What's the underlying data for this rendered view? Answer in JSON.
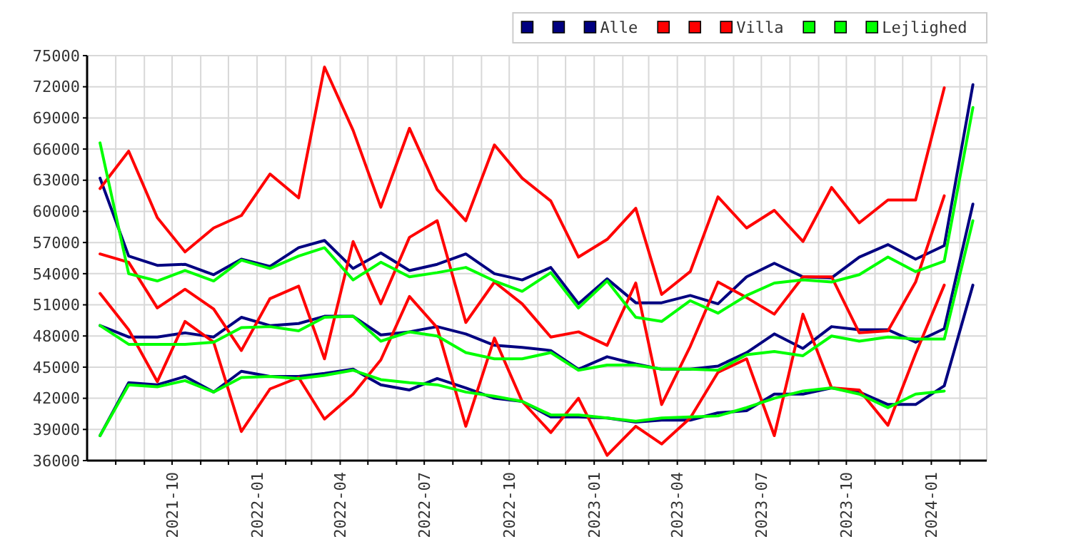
{
  "chart_data": {
    "type": "line",
    "x": [
      "2021-07-15",
      "2021-08-15",
      "2021-09-15",
      "2021-10-15",
      "2021-11-15",
      "2021-12-15",
      "2022-01-15",
      "2022-02-15",
      "2022-03-15",
      "2022-04-15",
      "2022-05-15",
      "2022-06-15",
      "2022-07-15",
      "2022-08-15",
      "2022-09-15",
      "2022-10-15",
      "2022-11-15",
      "2022-12-15",
      "2023-01-15",
      "2023-02-15",
      "2023-03-15",
      "2023-04-15",
      "2023-05-15",
      "2023-06-15",
      "2023-07-15",
      "2023-08-15",
      "2023-09-15",
      "2023-10-15",
      "2023-11-15",
      "2023-12-15",
      "2024-01-15",
      "2024-02-15"
    ],
    "series": [
      {
        "color": "#000080",
        "values": [
          63200,
          55700,
          54800,
          54900,
          53900,
          55400,
          54700,
          56500,
          57200,
          54500,
          56000,
          54300,
          54900,
          55900,
          54000,
          53400,
          54600,
          51100,
          53500,
          51200,
          51200,
          51900,
          51100,
          53700,
          55000,
          53700,
          53600,
          55600,
          56800,
          55400,
          56700,
          72200
        ]
      },
      {
        "color": "#000080",
        "values": [
          49000,
          47900,
          47900,
          48300,
          47900,
          49800,
          49000,
          49200,
          49900,
          49900,
          48100,
          48400,
          48900,
          48200,
          47100,
          46900,
          46600,
          44800,
          46000,
          45300,
          44800,
          44800,
          45100,
          46400,
          48200,
          46800,
          48900,
          48600,
          48600,
          47400,
          48700,
          60700
        ]
      },
      {
        "name": "Alle",
        "color": "#000080",
        "values": [
          38400,
          43500,
          43300,
          44100,
          42600,
          44600,
          44100,
          44100,
          44400,
          44800,
          43300,
          42800,
          43900,
          43000,
          42000,
          41700,
          40200,
          40200,
          40100,
          39700,
          39900,
          39900,
          40600,
          40800,
          42400,
          42400,
          43000,
          42600,
          41400,
          41400,
          43200,
          52900
        ]
      },
      {
        "color": "#ff0000",
        "values": [
          62200,
          65800,
          59400,
          56100,
          58400,
          59600,
          63600,
          61300,
          73900,
          67800,
          60400,
          68000,
          62100,
          59100,
          66400,
          63200,
          61000,
          55600,
          57300,
          60300,
          52000,
          54200,
          61400,
          58400,
          60100,
          57100,
          62300,
          58900,
          61100,
          61100,
          71900,
          null
        ]
      },
      {
        "color": "#ff0000",
        "values": [
          55900,
          55100,
          50700,
          52500,
          50600,
          46600,
          51600,
          52800,
          45800,
          57100,
          51100,
          57500,
          59100,
          49300,
          53200,
          51100,
          47900,
          48400,
          47100,
          53100,
          41400,
          47000,
          53200,
          51700,
          50100,
          53700,
          53700,
          48300,
          48500,
          53200,
          61500,
          null
        ]
      },
      {
        "name": "Villa",
        "color": "#ff0000",
        "values": [
          52100,
          48600,
          43600,
          49400,
          47400,
          38800,
          42900,
          44000,
          40000,
          42400,
          45700,
          51800,
          48800,
          39300,
          47800,
          41700,
          38700,
          42000,
          36500,
          39300,
          37600,
          40100,
          44500,
          45800,
          38400,
          50100,
          43000,
          42800,
          39400,
          46300,
          52900,
          null
        ]
      },
      {
        "color": "#00ff00",
        "values": [
          66600,
          54000,
          53300,
          54300,
          53300,
          55300,
          54500,
          55700,
          56500,
          53400,
          55100,
          53700,
          54100,
          54600,
          53300,
          52300,
          54100,
          50700,
          53300,
          49800,
          49400,
          51400,
          50200,
          51900,
          53100,
          53400,
          53200,
          53900,
          55600,
          54200,
          55200,
          70000
        ]
      },
      {
        "color": "#00ff00",
        "values": [
          49000,
          47200,
          47200,
          47200,
          47400,
          48800,
          48900,
          48500,
          49800,
          49900,
          47500,
          48400,
          48000,
          46400,
          45800,
          45800,
          46400,
          44700,
          45200,
          45200,
          44800,
          44800,
          44700,
          46200,
          46500,
          46100,
          48000,
          47500,
          47900,
          47700,
          47700,
          59100
        ]
      },
      {
        "name": "Lejlighed",
        "color": "#00ff00",
        "values": [
          38400,
          43300,
          43100,
          43700,
          42600,
          44000,
          44100,
          43900,
          44200,
          44700,
          43800,
          43500,
          43300,
          42600,
          42200,
          41700,
          40400,
          40400,
          40100,
          39800,
          40100,
          40200,
          40300,
          41100,
          42000,
          42700,
          43000,
          42400,
          41100,
          42400,
          42700,
          null
        ]
      }
    ],
    "xlim": [
      "2021-07-01",
      "2024-03-01"
    ],
    "xticks": [
      {
        "value": "2021-08",
        "label": null
      },
      {
        "value": "2021-09",
        "label": null
      },
      "2021-10",
      {
        "value": "2021-11",
        "label": null
      },
      {
        "value": "2021-12",
        "label": null
      },
      "2022-01",
      {
        "value": "2022-02",
        "label": null
      },
      {
        "value": "2022-03",
        "label": null
      },
      "2022-04",
      {
        "value": "2022-05",
        "label": null
      },
      {
        "value": "2022-06",
        "label": null
      },
      "2022-07",
      {
        "value": "2022-08",
        "label": null
      },
      {
        "value": "2022-09",
        "label": null
      },
      "2022-10",
      {
        "value": "2022-11",
        "label": null
      },
      {
        "value": "2022-12",
        "label": null
      },
      "2023-01",
      {
        "value": "2023-02",
        "label": null
      },
      {
        "value": "2023-03",
        "label": null
      },
      "2023-04",
      {
        "value": "2023-05",
        "label": null
      },
      {
        "value": "2023-06",
        "label": null
      },
      "2023-07",
      {
        "value": "2023-08",
        "label": null
      },
      {
        "value": "2023-09",
        "label": null
      },
      "2023-10",
      {
        "value": "2023-11",
        "label": null
      },
      {
        "value": "2023-12",
        "label": null
      },
      "2024-01",
      {
        "value": "2024-02",
        "label": null
      }
    ],
    "ylim": [
      36000,
      75000
    ],
    "yticks": [
      36000,
      39000,
      42000,
      45000,
      48000,
      51000,
      54000,
      57000,
      60000,
      63000,
      66000,
      69000,
      72000,
      75000
    ],
    "grid": true,
    "legend": "top right",
    "marker": "none",
    "line_style": "solid"
  }
}
